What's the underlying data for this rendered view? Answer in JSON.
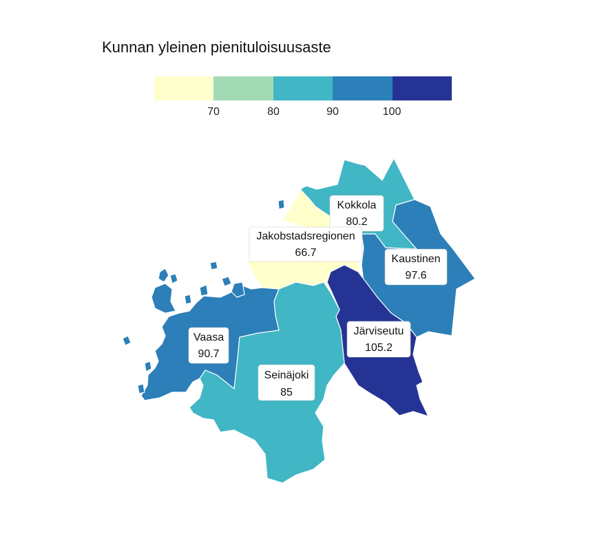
{
  "title": "Kunnan yleinen pienituloisuusaste",
  "legend": {
    "colors": [
      "#ffffcc",
      "#a1dab4",
      "#41b6c4",
      "#2c7fb8",
      "#253494"
    ],
    "ticks": [
      "70",
      "80",
      "90",
      "100"
    ]
  },
  "regions": [
    {
      "name": "Kokkola",
      "value": "80.2",
      "color": "#41b6c4"
    },
    {
      "name": "Jakobstadsregionen",
      "value": "66.7",
      "color": "#ffffcc"
    },
    {
      "name": "Kaustinen",
      "value": "97.6",
      "color": "#2c7fb8"
    },
    {
      "name": "Järviseutu",
      "value": "105.2",
      "color": "#253494"
    },
    {
      "name": "Vaasa",
      "value": "90.7",
      "color": "#2c7fb8"
    },
    {
      "name": "Seinäjoki",
      "value": "85",
      "color": "#41b6c4"
    }
  ]
}
